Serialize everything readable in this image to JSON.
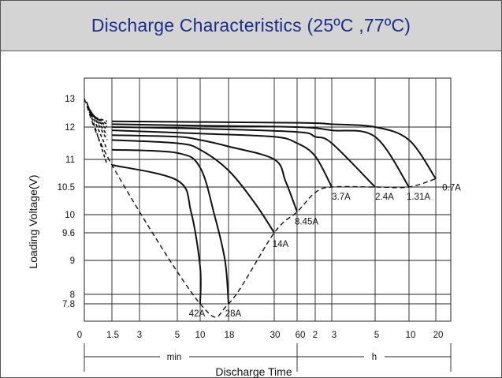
{
  "chart_data": {
    "type": "line",
    "title": "Discharge Characteristics (25ºC ,77ºC)",
    "ylabel": "Loading  Voltage(V)",
    "xlabel": "Discharge Time",
    "ylim": [
      7.6,
      13.2
    ],
    "yticks": [
      {
        "value": 13,
        "label": "13"
      },
      {
        "value": 12,
        "label": "12"
      },
      {
        "value": 11,
        "label": "11"
      },
      {
        "value": 10.5,
        "label": "10.5"
      },
      {
        "value": 10,
        "label": "10"
      },
      {
        "value": 9.6,
        "label": "9.6"
      },
      {
        "value": 9,
        "label": "9"
      },
      {
        "value": 8,
        "label": "8"
      },
      {
        "value": 7.8,
        "label": "7.8"
      }
    ],
    "x_axis": {
      "labels": [
        "0",
        "1.5",
        "3",
        "5",
        "10",
        "18",
        "30",
        "60",
        "2",
        "3",
        "5",
        "10",
        "20"
      ],
      "unit_min": "min",
      "unit_h": "h"
    },
    "series": [
      {
        "name": "42A",
        "end_voltage": 7.8,
        "points": [
          [
            1.5,
            10.9
          ],
          [
            5,
            10.62
          ],
          [
            8,
            10.05
          ],
          [
            10,
            8.8
          ],
          [
            10,
            7.8
          ]
        ]
      },
      {
        "name": "28A",
        "end_voltage": 7.8,
        "points": [
          [
            1.5,
            11.3
          ],
          [
            5,
            11.2
          ],
          [
            10,
            10.85
          ],
          [
            14,
            10.0
          ],
          [
            17,
            9.0
          ],
          [
            18,
            7.8
          ]
        ]
      },
      {
        "name": "14A",
        "end_voltage": 9.6,
        "points": [
          [
            1.5,
            11.6
          ],
          [
            5,
            11.5
          ],
          [
            10,
            11.3
          ],
          [
            18,
            10.8
          ],
          [
            25,
            10.2
          ],
          [
            30,
            9.6
          ]
        ]
      },
      {
        "name": "8.45A",
        "end_voltage": 10.05,
        "points": [
          [
            1.5,
            11.75
          ],
          [
            5,
            11.7
          ],
          [
            10,
            11.6
          ],
          [
            18,
            11.4
          ],
          [
            30,
            11.0
          ],
          [
            45,
            10.6
          ],
          [
            60,
            10.05
          ]
        ]
      },
      {
        "name": "3.7A",
        "end_voltage": 10.5,
        "points": [
          [
            1.5,
            11.9
          ],
          [
            10,
            11.8
          ],
          [
            30,
            11.7
          ],
          [
            60,
            11.5
          ],
          [
            120,
            11.1
          ],
          [
            180,
            10.5
          ]
        ]
      },
      {
        "name": "2.4A",
        "end_voltage": 10.5,
        "points": [
          [
            1.5,
            12.0
          ],
          [
            10,
            11.95
          ],
          [
            60,
            11.85
          ],
          [
            120,
            11.7
          ],
          [
            180,
            11.5
          ],
          [
            300,
            10.5
          ]
        ]
      },
      {
        "name": "1.31A",
        "end_voltage": 10.5,
        "points": [
          [
            1.5,
            12.1
          ],
          [
            10,
            12.05
          ],
          [
            60,
            12.0
          ],
          [
            180,
            11.9
          ],
          [
            300,
            11.7
          ],
          [
            600,
            10.5
          ]
        ]
      },
      {
        "name": "0.7A",
        "end_voltage": 10.65,
        "points": [
          [
            1.5,
            12.2
          ],
          [
            60,
            12.15
          ],
          [
            180,
            12.1
          ],
          [
            300,
            12.0
          ],
          [
            600,
            11.6
          ],
          [
            1200,
            10.65
          ]
        ]
      }
    ],
    "end_voltage_curve": {
      "style": "dashed",
      "points": [
        [
          0,
          13
        ],
        [
          1.5,
          10.9
        ],
        [
          10,
          7.8
        ],
        [
          18,
          7.8
        ],
        [
          30,
          9.6
        ],
        [
          60,
          10.05
        ],
        [
          120,
          10.4
        ],
        [
          180,
          10.5
        ],
        [
          300,
          10.5
        ],
        [
          600,
          10.5
        ],
        [
          1200,
          10.65
        ]
      ]
    },
    "grid": true,
    "legend": "inline labels at curve ends"
  }
}
